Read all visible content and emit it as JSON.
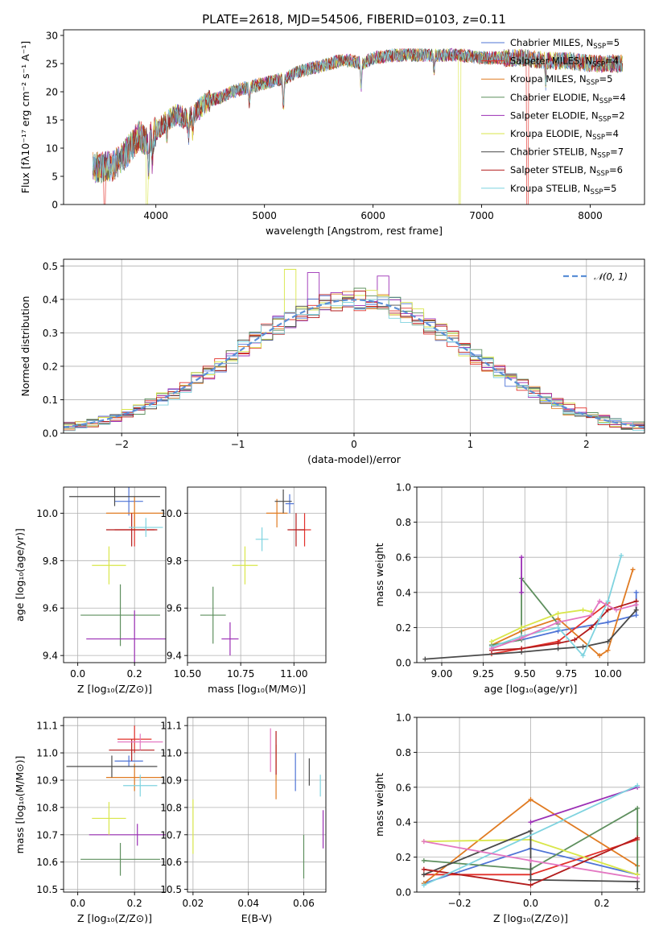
{
  "figure_title": "PLATE=2618, MJD=54506, FIBERID=0103, z=0.11",
  "colors": {
    "Chabrier MILES": "#4f74d6",
    "Salpeter MILES": "#e2302a",
    "Kroupa MILES": "#e07b22",
    "Chabrier ELODIE": "#5e8f5e",
    "Salpeter ELODIE": "#9b2fb5",
    "Kroupa ELODIE": "#d9e64a",
    "Chabrier STELIB": "#4a4a4a",
    "Salpeter STELIB": "#b31b1b",
    "Kroupa STELIB": "#7fd3df",
    "gaussian": "#5b8fd6"
  },
  "chart_data": [
    {
      "id": "spectrum",
      "type": "line",
      "title": "PLATE=2618, MJD=54506, FIBERID=0103, z=0.11",
      "xlabel": "wavelength [Angstrom, rest frame]",
      "ylabel": "Flux [fλ10⁻¹⁷ erg cm⁻² s⁻¹ A⁻¹]",
      "xlim": [
        3150,
        8500
      ],
      "ylim": [
        0,
        31
      ],
      "xticks": [
        4000,
        5000,
        6000,
        7000,
        8000
      ],
      "yticks": [
        0,
        5,
        10,
        15,
        20,
        25,
        30
      ],
      "grid": false,
      "legend_position": "top-right",
      "legend": [
        {
          "base": "Chabrier MILES, N",
          "sub": "SSP",
          "suffix": "=5"
        },
        {
          "base": "Salpeter MILES, N",
          "sub": "SSP",
          "suffix": "=4"
        },
        {
          "base": "Kroupa MILES, N",
          "sub": "SSP",
          "suffix": "=5"
        },
        {
          "base": "Chabrier ELODIE, N",
          "sub": "SSP",
          "suffix": "=4"
        },
        {
          "base": "Salpeter ELODIE, N",
          "sub": "SSP",
          "suffix": "=2"
        },
        {
          "base": "Kroupa ELODIE, N",
          "sub": "SSP",
          "suffix": "=4"
        },
        {
          "base": "Chabrier STELIB, N",
          "sub": "SSP",
          "suffix": "=7"
        },
        {
          "base": "Salpeter STELIB, N",
          "sub": "SSP",
          "suffix": "=6"
        },
        {
          "base": "Kroupa STELIB, N",
          "sub": "SSP",
          "suffix": "=5"
        }
      ],
      "continuum": [
        [
          3420,
          6.5
        ],
        [
          3600,
          6.8
        ],
        [
          3700,
          8.5
        ],
        [
          3800,
          11
        ],
        [
          3850,
          12.5
        ],
        [
          3900,
          11
        ],
        [
          3950,
          12
        ],
        [
          4000,
          13
        ],
        [
          4100,
          15
        ],
        [
          4200,
          16
        ],
        [
          4300,
          15
        ],
        [
          4400,
          17
        ],
        [
          4500,
          18.5
        ],
        [
          4600,
          19
        ],
        [
          4700,
          20
        ],
        [
          4800,
          20.5
        ],
        [
          4900,
          21
        ],
        [
          5000,
          21.5
        ],
        [
          5100,
          22
        ],
        [
          5200,
          22.5
        ],
        [
          5300,
          23.5
        ],
        [
          5400,
          24
        ],
        [
          5500,
          24.5
        ],
        [
          5600,
          25
        ],
        [
          5700,
          25.5
        ],
        [
          5800,
          25.5
        ],
        [
          5900,
          25
        ],
        [
          6000,
          26
        ],
        [
          6200,
          26.5
        ],
        [
          6400,
          26.5
        ],
        [
          6600,
          26.5
        ],
        [
          6800,
          26.5
        ],
        [
          7000,
          26
        ],
        [
          7200,
          26
        ],
        [
          7400,
          26
        ],
        [
          7600,
          25.5
        ],
        [
          7800,
          25.5
        ],
        [
          8000,
          25
        ],
        [
          8300,
          25
        ]
      ],
      "dips": [
        {
          "series": "Salpeter MILES",
          "start": 3530,
          "end": 7420
        },
        {
          "series": "Kroupa ELODIE",
          "start": 3920,
          "end": 6800
        }
      ]
    },
    {
      "id": "residuals",
      "type": "histogram",
      "xlabel": "(data-model)/error",
      "ylabel": "Normed distribution",
      "xlim": [
        -2.5,
        2.5
      ],
      "ylim": [
        0,
        0.52
      ],
      "xticks": [
        -2,
        -1,
        0,
        1,
        2
      ],
      "yticks": [
        0.0,
        0.1,
        0.2,
        0.3,
        0.4,
        0.5
      ],
      "grid": true,
      "legend_position": "top-right",
      "legend": [
        {
          "label": "𝒩(0, 1)",
          "style": "dashed"
        }
      ],
      "bin_width": 0.1,
      "peaks": [
        {
          "x": -0.55,
          "y": 0.49,
          "series": "Kroupa ELODIE"
        },
        {
          "x": 0.25,
          "y": 0.47,
          "series": "Salpeter ELODIE"
        },
        {
          "x": -0.35,
          "y": 0.48,
          "series": "Salpeter ELODIE"
        }
      ]
    },
    {
      "id": "age_vs_Z",
      "type": "scatter",
      "xlabel": "Z [log₁₀(Z/Z⊙)]",
      "ylabel": "age  [log₁₀(age/yr)]",
      "xlim": [
        -0.05,
        0.31
      ],
      "ylim": [
        9.37,
        10.11
      ],
      "xticks": [
        0.0,
        0.2
      ],
      "yticks": [
        9.4,
        9.6,
        9.8,
        10.0
      ],
      "grid": true,
      "points": [
        {
          "series": "Chabrier MILES",
          "x": 0.18,
          "y": 10.05,
          "xerr": 0.05,
          "yerr": 0.06
        },
        {
          "series": "Salpeter MILES",
          "x": 0.2,
          "y": 9.93,
          "xerr": 0.07,
          "yerr": 0.07
        },
        {
          "series": "Kroupa MILES",
          "x": 0.2,
          "y": 10.0,
          "xerr": 0.1,
          "yerr": 0.07
        },
        {
          "series": "Chabrier ELODIE",
          "x": 0.15,
          "y": 9.57,
          "xerr": 0.14,
          "yerr": 0.13
        },
        {
          "series": "Salpeter ELODIE",
          "x": 0.2,
          "y": 9.47,
          "xerr": 0.17,
          "yerr": 0.12
        },
        {
          "series": "Kroupa ELODIE",
          "x": 0.11,
          "y": 9.78,
          "xerr": 0.06,
          "yerr": 0.08
        },
        {
          "series": "Chabrier STELIB",
          "x": 0.13,
          "y": 10.07,
          "xerr": 0.16,
          "yerr": 0.04
        },
        {
          "series": "Salpeter STELIB",
          "x": 0.19,
          "y": 9.93,
          "xerr": 0.09,
          "yerr": 0.07
        },
        {
          "series": "Kroupa STELIB",
          "x": 0.24,
          "y": 9.94,
          "xerr": 0.06,
          "yerr": 0.04
        }
      ]
    },
    {
      "id": "age_vs_mass",
      "type": "scatter",
      "xlabel": "mass [log₁₀(M/M⊙)]",
      "ylabel": "",
      "xlim": [
        10.5,
        11.15
      ],
      "ylim": [
        9.37,
        10.11
      ],
      "xticks": [
        10.5,
        10.75,
        11.0
      ],
      "yticks": [
        9.4,
        9.6,
        9.8,
        10.0
      ],
      "grid": true,
      "points": [
        {
          "series": "Chabrier MILES",
          "x": 10.98,
          "y": 10.04,
          "xerr": 0.02,
          "yerr": 0.04
        },
        {
          "series": "Salpeter MILES",
          "x": 11.05,
          "y": 9.93,
          "xerr": 0.03,
          "yerr": 0.07
        },
        {
          "series": "Kroupa MILES",
          "x": 10.92,
          "y": 10.0,
          "xerr": 0.05,
          "yerr": 0.06
        },
        {
          "series": "Chabrier ELODIE",
          "x": 10.62,
          "y": 9.57,
          "xerr": 0.06,
          "yerr": 0.12
        },
        {
          "series": "Salpeter ELODIE",
          "x": 10.7,
          "y": 9.47,
          "xerr": 0.04,
          "yerr": 0.07
        },
        {
          "series": "Kroupa ELODIE",
          "x": 10.77,
          "y": 9.78,
          "xerr": 0.06,
          "yerr": 0.08
        },
        {
          "series": "Chabrier STELIB",
          "x": 10.95,
          "y": 10.05,
          "xerr": 0.04,
          "yerr": 0.05
        },
        {
          "series": "Salpeter STELIB",
          "x": 11.01,
          "y": 9.93,
          "xerr": 0.04,
          "yerr": 0.07
        },
        {
          "series": "Kroupa STELIB",
          "x": 10.85,
          "y": 9.89,
          "xerr": 0.03,
          "yerr": 0.05
        }
      ]
    },
    {
      "id": "massweight_vs_age",
      "type": "line",
      "xlabel": "age  [log₁₀(age/yr)]",
      "ylabel": "mass weight",
      "xlim": [
        8.85,
        10.22
      ],
      "ylim": [
        0,
        1.0
      ],
      "xticks": [
        9.0,
        9.25,
        9.5,
        9.75,
        10.0
      ],
      "yticks": [
        0.0,
        0.2,
        0.4,
        0.6,
        0.8,
        1.0
      ],
      "grid": true,
      "series": [
        {
          "name": "Chabrier MILES",
          "x": [
            9.3,
            9.48,
            9.7,
            10.0,
            10.17,
            10.17
          ],
          "y": [
            0.1,
            0.13,
            0.18,
            0.23,
            0.27,
            0.4
          ]
        },
        {
          "name": "Salpeter MILES",
          "x": [
            9.3,
            9.48,
            9.7,
            10.0
          ],
          "y": [
            0.05,
            0.08,
            0.12,
            0.34
          ]
        },
        {
          "name": "Kroupa MILES",
          "x": [
            9.3,
            9.48,
            9.7,
            9.95,
            10.0,
            10.15
          ],
          "y": [
            0.1,
            0.18,
            0.25,
            0.04,
            0.07,
            0.53
          ]
        },
        {
          "name": "Chabrier ELODIE",
          "x": [
            9.3,
            9.48,
            9.48,
            9.7
          ],
          "y": [
            0.1,
            0.13,
            0.48,
            0.22
          ]
        },
        {
          "name": "Salpeter ELODIE",
          "x": [
            9.48,
            9.48
          ],
          "y": [
            0.4,
            0.6
          ]
        },
        {
          "name": "Kroupa ELODIE",
          "x": [
            9.3,
            9.48,
            9.7,
            9.85,
            9.9
          ],
          "y": [
            0.12,
            0.2,
            0.28,
            0.3,
            0.29
          ]
        },
        {
          "name": "Chabrier STELIB",
          "x": [
            8.9,
            9.48,
            9.7,
            9.85,
            10.0,
            10.17,
            10.17
          ],
          "y": [
            0.02,
            0.06,
            0.08,
            0.09,
            0.12,
            0.3,
            0.35
          ]
        },
        {
          "name": "Salpeter STELIB",
          "x": [
            9.3,
            9.48,
            9.7,
            9.8,
            9.9,
            10.0,
            10.17
          ],
          "y": [
            0.07,
            0.08,
            0.11,
            0.13,
            0.2,
            0.3,
            0.35
          ]
        },
        {
          "name": "Kroupa STELIB",
          "x": [
            9.3,
            9.48,
            9.7,
            9.85,
            9.95,
            10.0,
            10.08
          ],
          "y": [
            0.09,
            0.15,
            0.2,
            0.04,
            0.25,
            0.35,
            0.61
          ]
        },
        {
          "name": "pink",
          "x": [
            9.3,
            9.48,
            9.7,
            9.9,
            9.95,
            10.05,
            10.17
          ],
          "y": [
            0.08,
            0.14,
            0.23,
            0.27,
            0.35,
            0.3,
            0.33
          ]
        }
      ]
    },
    {
      "id": "mass_vs_Z",
      "type": "scatter",
      "xlabel": "Z [log₁₀(Z/Z⊙)]",
      "ylabel": "mass [log₁₀(M/M⊙)]",
      "xlim": [
        -0.05,
        0.31
      ],
      "ylim": [
        10.49,
        11.13
      ],
      "xticks": [
        0.0,
        0.2
      ],
      "yticks": [
        10.5,
        10.6,
        10.7,
        10.8,
        10.9,
        11.0,
        11.1
      ],
      "grid": true,
      "points": [
        {
          "series": "Chabrier MILES",
          "x": 0.18,
          "y": 10.97,
          "xerr": 0.05,
          "yerr": 0.02
        },
        {
          "series": "Salpeter MILES",
          "x": 0.2,
          "y": 11.05,
          "xerr": 0.06,
          "yerr": 0.05
        },
        {
          "series": "Kroupa MILES",
          "x": 0.2,
          "y": 10.91,
          "xerr": 0.1,
          "yerr": 0.05
        },
        {
          "series": "Chabrier ELODIE",
          "x": 0.15,
          "y": 10.61,
          "xerr": 0.14,
          "yerr": 0.06
        },
        {
          "series": "Salpeter ELODIE",
          "x": 0.21,
          "y": 10.7,
          "xerr": 0.17,
          "yerr": 0.04
        },
        {
          "series": "Kroupa ELODIE",
          "x": 0.11,
          "y": 10.76,
          "xerr": 0.06,
          "yerr": 0.06
        },
        {
          "series": "Chabrier STELIB",
          "x": 0.12,
          "y": 10.95,
          "xerr": 0.16,
          "yerr": 0.04
        },
        {
          "series": "Salpeter STELIB",
          "x": 0.19,
          "y": 11.01,
          "xerr": 0.08,
          "yerr": 0.04
        },
        {
          "series": "Kroupa STELIB",
          "x": 0.22,
          "y": 10.88,
          "xerr": 0.06,
          "yerr": 0.04
        },
        {
          "series": "pink",
          "x": 0.22,
          "y": 11.04,
          "xerr": 0.08,
          "yerr": 0.03
        }
      ]
    },
    {
      "id": "mass_vs_EBV",
      "type": "scatter",
      "xlabel": "E(B-V)",
      "ylabel": "",
      "xlim": [
        0.018,
        0.068
      ],
      "ylim": [
        10.49,
        11.13
      ],
      "xticks": [
        0.02,
        0.04,
        0.06
      ],
      "yticks": [
        10.5,
        10.6,
        10.7,
        10.8,
        10.9,
        11.0,
        11.1
      ],
      "grid": true,
      "points": [
        {
          "series": "Chabrier MILES",
          "x": 0.057,
          "y": 10.93,
          "xerr": 0,
          "yerr": 0.07
        },
        {
          "series": "Kroupa MILES",
          "x": 0.05,
          "y": 10.93,
          "xerr": 0,
          "yerr": 0.1
        },
        {
          "series": "Chabrier ELODIE",
          "x": 0.06,
          "y": 10.62,
          "xerr": 0,
          "yerr": 0.08
        },
        {
          "series": "Salpeter ELODIE",
          "x": 0.067,
          "y": 10.72,
          "xerr": 0,
          "yerr": 0.07
        },
        {
          "series": "Kroupa ELODIE",
          "x": 0.02,
          "y": 10.73,
          "xerr": 0,
          "yerr": 0.1
        },
        {
          "series": "Chabrier STELIB",
          "x": 0.062,
          "y": 10.93,
          "xerr": 0,
          "yerr": 0.05
        },
        {
          "series": "Salpeter STELIB",
          "x": 0.05,
          "y": 11.0,
          "xerr": 0,
          "yerr": 0.08
        },
        {
          "series": "Kroupa STELIB",
          "x": 0.066,
          "y": 10.88,
          "xerr": 0,
          "yerr": 0.04
        },
        {
          "series": "pink",
          "x": 0.048,
          "y": 11.01,
          "xerr": 0,
          "yerr": 0.08
        }
      ]
    },
    {
      "id": "massweight_vs_Z",
      "type": "line",
      "xlabel": "Z [log₁₀(Z/Z⊙)]",
      "ylabel": "mass weight",
      "xlim": [
        -0.32,
        0.32
      ],
      "ylim": [
        0,
        1.0
      ],
      "xticks": [
        -0.2,
        0.0,
        0.2
      ],
      "yticks": [
        0.0,
        0.2,
        0.4,
        0.6,
        0.8,
        1.0
      ],
      "grid": true,
      "series": [
        {
          "name": "Chabrier MILES",
          "x": [
            -0.3,
            0.0,
            0.3
          ],
          "y": [
            0.05,
            0.25,
            0.1
          ]
        },
        {
          "name": "Salpeter MILES",
          "x": [
            -0.3,
            0.0,
            0.3
          ],
          "y": [
            0.1,
            0.1,
            0.3
          ]
        },
        {
          "name": "Kroupa MILES",
          "x": [
            -0.3,
            0.0,
            0.3
          ],
          "y": [
            0.05,
            0.53,
            0.15
          ]
        },
        {
          "name": "Chabrier ELODIE",
          "x": [
            -0.3,
            0.0,
            0.3,
            0.3
          ],
          "y": [
            0.18,
            0.13,
            0.48,
            0.1
          ]
        },
        {
          "name": "Salpeter ELODIE",
          "x": [
            0.0,
            0.3
          ],
          "y": [
            0.4,
            0.6
          ]
        },
        {
          "name": "Kroupa ELODIE",
          "x": [
            -0.3,
            0.0,
            0.3
          ],
          "y": [
            0.29,
            0.3,
            0.1
          ]
        },
        {
          "name": "Chabrier STELIB",
          "x": [
            -0.3,
            0.0,
            0.0,
            0.3,
            0.3
          ],
          "y": [
            0.1,
            0.35,
            0.07,
            0.06,
            0.02
          ]
        },
        {
          "name": "Salpeter STELIB",
          "x": [
            -0.3,
            0.0,
            0.3
          ],
          "y": [
            0.13,
            0.04,
            0.31
          ]
        },
        {
          "name": "Kroupa STELIB",
          "x": [
            -0.3,
            0.3
          ],
          "y": [
            0.04,
            0.61
          ]
        },
        {
          "name": "pink",
          "x": [
            -0.3,
            0.0,
            0.3
          ],
          "y": [
            0.29,
            0.18,
            0.08
          ]
        }
      ]
    }
  ]
}
